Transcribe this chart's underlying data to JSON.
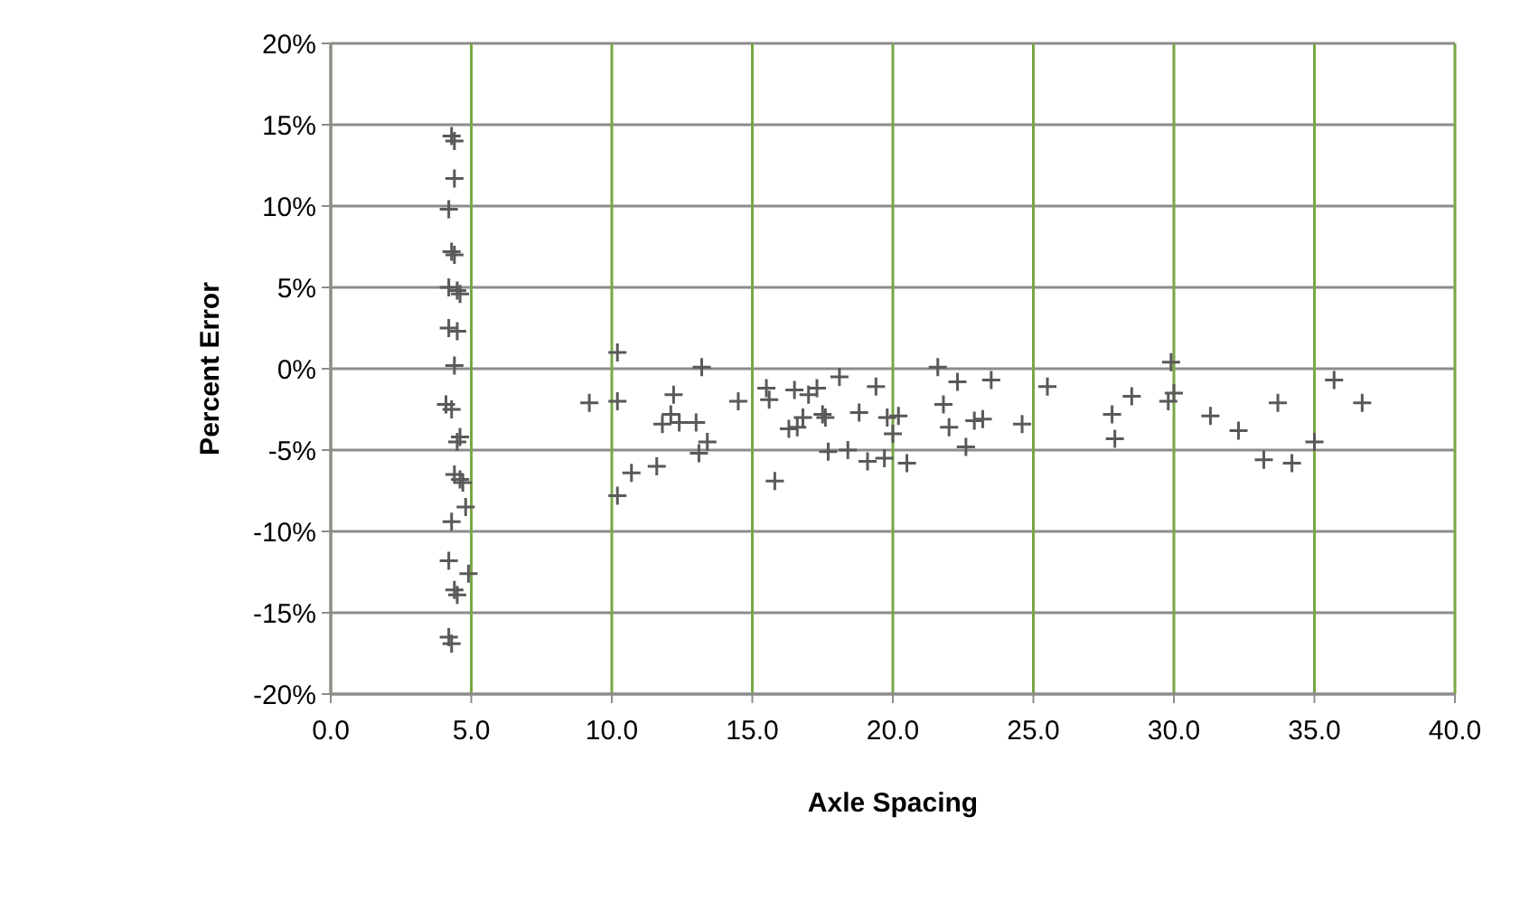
{
  "chart_data": {
    "type": "scatter",
    "xlabel": "Axle Spacing",
    "ylabel": "Percent Error",
    "marker": "cross",
    "grid": true,
    "xlim": [
      0,
      40
    ],
    "xticks": [
      {
        "value": 0,
        "label": "0.0"
      },
      {
        "value": 5,
        "label": "5.0"
      },
      {
        "value": 10,
        "label": "10.0"
      },
      {
        "value": 15,
        "label": "15.0"
      },
      {
        "value": 20,
        "label": "20.0"
      },
      {
        "value": 25,
        "label": "25.0"
      },
      {
        "value": 30,
        "label": "30.0"
      },
      {
        "value": 35,
        "label": "35.0"
      },
      {
        "value": 40,
        "label": "40.0"
      }
    ],
    "ylim": [
      -20,
      20
    ],
    "yticks": [
      {
        "value": -20,
        "label": "-20%"
      },
      {
        "value": -15,
        "label": "-15%"
      },
      {
        "value": -10,
        "label": "-10%"
      },
      {
        "value": -5,
        "label": "-5%"
      },
      {
        "value": 0,
        "label": "0%"
      },
      {
        "value": 5,
        "label": "5%"
      },
      {
        "value": 10,
        "label": "10%"
      },
      {
        "value": 15,
        "label": "15%"
      },
      {
        "value": 20,
        "label": "20%"
      }
    ],
    "series": [
      {
        "color": "#595959",
        "x": [
          4.3,
          4.4,
          4.4,
          4.2,
          4.3,
          4.4,
          4.2,
          4.5,
          4.6,
          4.2,
          4.5,
          4.4,
          4.1,
          4.3,
          4.6,
          4.5,
          4.4,
          4.6,
          4.7,
          4.8,
          4.3,
          4.2,
          4.9,
          4.4,
          4.5,
          4.2,
          4.3,
          9.2,
          10.2,
          10.2,
          10.2,
          10.7,
          11.6,
          11.8,
          12.1,
          12.2,
          12.4,
          13.0,
          13.2,
          13.1,
          13.4,
          14.5,
          15.5,
          15.6,
          15.8,
          16.3,
          16.5,
          16.6,
          16.8,
          17.0,
          17.3,
          17.5,
          17.6,
          17.7,
          18.1,
          18.4,
          18.8,
          19.1,
          19.4,
          19.7,
          19.8,
          20.0,
          20.2,
          20.5,
          21.6,
          21.8,
          22.0,
          22.3,
          22.6,
          22.9,
          23.2,
          23.5,
          24.6,
          25.5,
          27.8,
          27.9,
          28.5,
          29.8,
          29.9,
          30.0,
          31.3,
          32.3,
          33.2,
          33.7,
          34.2,
          35.0,
          35.7,
          36.7
        ],
        "values": [
          14.3,
          14,
          11.7,
          9.8,
          7.2,
          7,
          5,
          4.8,
          4.6,
          2.5,
          2.3,
          0.2,
          -2.2,
          -2.5,
          -4.2,
          -4.5,
          -6.5,
          -6.8,
          -7,
          -8.5,
          -9.4,
          -11.8,
          -12.6,
          -13.6,
          -13.9,
          -16.5,
          -16.9,
          -2.1,
          1.0,
          -2.0,
          -7.8,
          -6.4,
          -6.0,
          -3.4,
          -2.8,
          -1.6,
          -3.3,
          -3.3,
          0.1,
          -5.2,
          -4.5,
          -2.0,
          -1.2,
          -1.9,
          -6.9,
          -3.7,
          -1.3,
          -3.6,
          -3.0,
          -1.6,
          -1.2,
          -2.8,
          -3.0,
          -5.1,
          -0.5,
          -5.0,
          -2.7,
          -5.7,
          -1.1,
          -5.5,
          -3.0,
          -4.0,
          -2.9,
          -5.8,
          0.1,
          -2.2,
          -3.6,
          -0.8,
          -4.8,
          -3.2,
          -3.1,
          -0.7,
          -3.4,
          -1.1,
          -2.8,
          -4.3,
          -1.7,
          -2.0,
          0.4,
          -1.5,
          -2.9,
          -3.8,
          -5.6,
          -2.1,
          -5.8,
          -4.5,
          -0.7,
          -2.1
        ]
      }
    ]
  }
}
